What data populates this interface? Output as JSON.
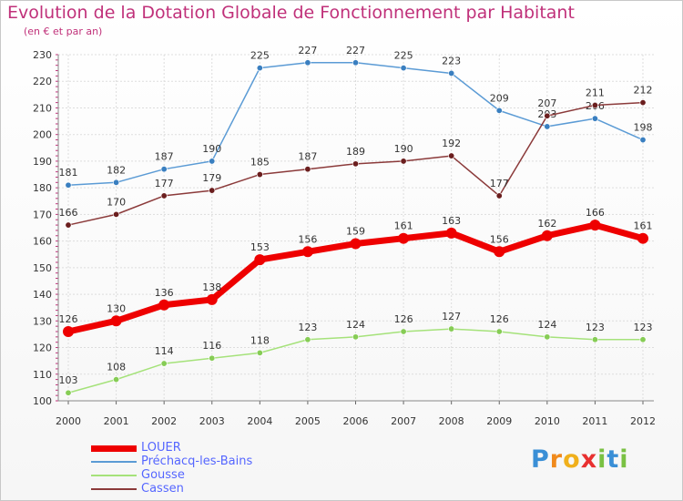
{
  "chart_data": {
    "type": "line",
    "title": "Evolution de la Dotation Globale de Fonctionnement par Habitant",
    "subtitle": "(en € et par an)",
    "categories": [
      "2000",
      "2001",
      "2002",
      "2003",
      "2004",
      "2005",
      "2006",
      "2007",
      "2008",
      "2009",
      "2010",
      "2011",
      "2012"
    ],
    "ylim": [
      100,
      230
    ],
    "yticks": [
      100,
      110,
      120,
      130,
      140,
      150,
      160,
      170,
      180,
      190,
      200,
      210,
      220,
      230
    ],
    "xlabel": "",
    "ylabel": "",
    "grid": true,
    "series": [
      {
        "name": "Préchacq-les-Bains",
        "color": "#5b9bd5",
        "dot": "#3a7fc0",
        "values": [
          181,
          182,
          187,
          190,
          225,
          227,
          227,
          225,
          223,
          209,
          203,
          206,
          198
        ]
      },
      {
        "name": "Cassen",
        "color": "#8b3a3a",
        "dot": "#6b1e1e",
        "values": [
          166,
          170,
          177,
          179,
          185,
          187,
          189,
          190,
          192,
          177,
          207,
          211,
          212
        ]
      },
      {
        "name": "LOUER",
        "color": "#ee0000",
        "dot": "#ee0000",
        "values": [
          126,
          130,
          136,
          138,
          153,
          156,
          159,
          161,
          163,
          156,
          162,
          166,
          161
        ]
      },
      {
        "name": "Gousse",
        "color": "#a5e27a",
        "dot": "#86cc55",
        "values": [
          103,
          108,
          114,
          116,
          118,
          123,
          124,
          126,
          127,
          126,
          124,
          123,
          123
        ]
      }
    ],
    "legend": [
      {
        "name": "LOUER",
        "color": "#ee0000",
        "text_color": "#5566ff"
      },
      {
        "name": "Préchacq-les-Bains",
        "color": "#5b9bd5",
        "text_color": "#5566ff"
      },
      {
        "name": "Gousse",
        "color": "#a5e27a",
        "text_color": "#5566ff"
      },
      {
        "name": "Cassen",
        "color": "#8b3a3a",
        "text_color": "#5566ff"
      }
    ]
  },
  "logo": {
    "letters": [
      {
        "char": "P",
        "color": "#3a8fd6"
      },
      {
        "char": "r",
        "color": "#f08a1c"
      },
      {
        "char": "o",
        "color": "#f0b01c"
      },
      {
        "char": "x",
        "color": "#e83030"
      },
      {
        "char": "i",
        "color": "#7ac143"
      },
      {
        "char": "t",
        "color": "#3a8fd6"
      },
      {
        "char": "i",
        "color": "#7ac143"
      }
    ]
  }
}
